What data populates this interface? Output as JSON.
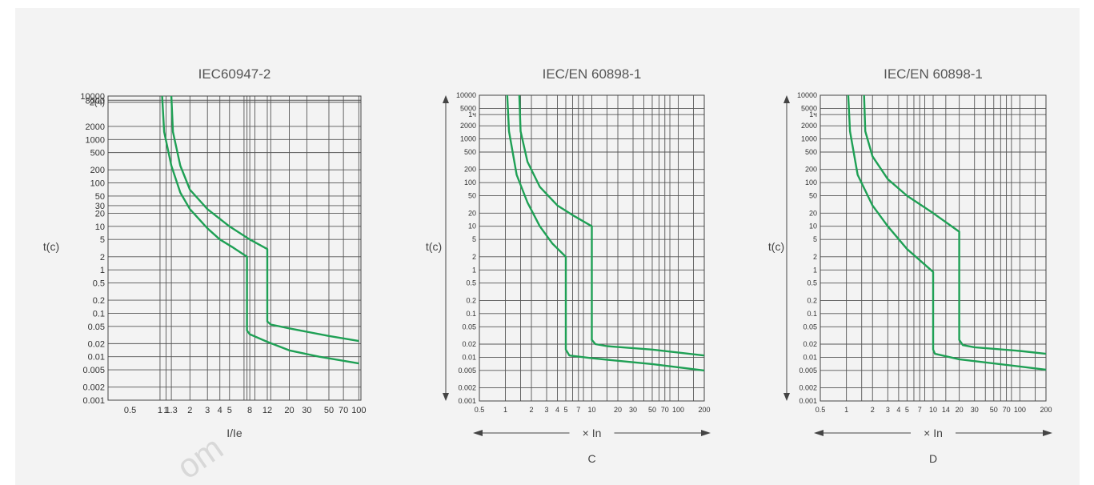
{
  "chart_data": [
    {
      "type": "line",
      "title": "IEC60947-2",
      "ylabel": "t(c)",
      "xlabel": "I/Ie",
      "xscale": "log",
      "yscale": "log",
      "xlim": [
        0.3,
        105
      ],
      "ylim": [
        0.001,
        10000
      ],
      "grid": true,
      "x_ticks": [
        {
          "v": 0.5,
          "label": "0.5"
        },
        {
          "v": 1,
          "label": "1"
        },
        {
          "v": 1.15,
          "label": "1"
        },
        {
          "v": 1.3,
          "label": "1.3"
        },
        {
          "v": 2,
          "label": "2"
        },
        {
          "v": 3,
          "label": "3"
        },
        {
          "v": 4,
          "label": "4"
        },
        {
          "v": 5,
          "label": "5"
        },
        {
          "v": 8,
          "label": "8"
        },
        {
          "v": 12,
          "label": "12"
        },
        {
          "v": 20,
          "label": "20"
        },
        {
          "v": 30,
          "label": "30"
        },
        {
          "v": 50,
          "label": "50"
        },
        {
          "v": 70,
          "label": "70"
        },
        {
          "v": 100,
          "label": "100"
        }
      ],
      "x_grid": [
        1,
        1.15,
        1.3,
        2,
        3,
        4,
        5,
        7,
        7.5,
        8,
        9,
        12,
        13,
        20,
        30,
        50,
        70,
        100
      ],
      "y_ticks": [
        {
          "v": 10000,
          "label": "10000"
        },
        {
          "v": 8000,
          "label": "8000"
        },
        {
          "v": 7200,
          "label": "2(ч)"
        },
        {
          "v": 2000,
          "label": "2000"
        },
        {
          "v": 1000,
          "label": "1000"
        },
        {
          "v": 500,
          "label": "500"
        },
        {
          "v": 200,
          "label": "200"
        },
        {
          "v": 100,
          "label": "100"
        },
        {
          "v": 50,
          "label": "50"
        },
        {
          "v": 30,
          "label": "30"
        },
        {
          "v": 20,
          "label": "20"
        },
        {
          "v": 10,
          "label": "10"
        },
        {
          "v": 5,
          "label": "5"
        },
        {
          "v": 2,
          "label": "2"
        },
        {
          "v": 1,
          "label": "1"
        },
        {
          "v": 0.5,
          "label": "0.5"
        },
        {
          "v": 0.2,
          "label": "0.2"
        },
        {
          "v": 0.1,
          "label": "0.1"
        },
        {
          "v": 0.05,
          "label": "0.05"
        },
        {
          "v": 0.02,
          "label": "0.02"
        },
        {
          "v": 0.01,
          "label": "0.01"
        },
        {
          "v": 0.005,
          "label": "0.005"
        },
        {
          "v": 0.002,
          "label": "0.002"
        },
        {
          "v": 0.001,
          "label": "0.001"
        }
      ],
      "series": [
        {
          "points": [
            [
              1.05,
              10000
            ],
            [
              1.1,
              1500
            ],
            [
              1.3,
              250
            ],
            [
              1.6,
              60
            ],
            [
              2,
              25
            ],
            [
              3,
              9
            ],
            [
              4,
              5
            ],
            [
              5.5,
              3.2
            ],
            [
              7.5,
              2
            ],
            [
              7.5,
              0.04
            ],
            [
              8,
              0.033
            ],
            [
              12,
              0.022
            ],
            [
              20,
              0.014
            ],
            [
              40,
              0.01
            ],
            [
              100,
              0.007
            ]
          ]
        },
        {
          "points": [
            [
              1.3,
              10000
            ],
            [
              1.35,
              1500
            ],
            [
              1.6,
              250
            ],
            [
              2,
              70
            ],
            [
              3,
              25
            ],
            [
              5,
              10
            ],
            [
              8,
              5
            ],
            [
              12,
              3
            ],
            [
              12,
              0.065
            ],
            [
              13,
              0.055
            ],
            [
              20,
              0.045
            ],
            [
              50,
              0.03
            ],
            [
              100,
              0.023
            ]
          ]
        }
      ]
    },
    {
      "type": "line",
      "title": "IEC/EN 60898-1",
      "ylabel": "t(c)",
      "xlabel": "× In",
      "sublabel": "C",
      "xscale": "log",
      "yscale": "log",
      "xlim": [
        0.5,
        200
      ],
      "ylim": [
        0.001,
        10000
      ],
      "grid": true,
      "x_ticks": [
        {
          "v": 0.5,
          "label": "0.5"
        },
        {
          "v": 1,
          "label": "1"
        },
        {
          "v": 2,
          "label": "2"
        },
        {
          "v": 3,
          "label": "3"
        },
        {
          "v": 4,
          "label": "4"
        },
        {
          "v": 5,
          "label": "5"
        },
        {
          "v": 7,
          "label": "7"
        },
        {
          "v": 10,
          "label": "10"
        },
        {
          "v": 20,
          "label": "20"
        },
        {
          "v": 30,
          "label": "30"
        },
        {
          "v": 50,
          "label": "50"
        },
        {
          "v": 70,
          "label": "70"
        },
        {
          "v": 100,
          "label": "100"
        },
        {
          "v": 200,
          "label": "200"
        }
      ],
      "x_grid": [
        1,
        1.5,
        2,
        3,
        4,
        5,
        6,
        7,
        8,
        10,
        15,
        20,
        30,
        40,
        50,
        60,
        70,
        80,
        100,
        150
      ],
      "y_ticks": [
        {
          "v": 10000,
          "label": "10000"
        },
        {
          "v": 5000,
          "label": "5000"
        },
        {
          "v": 3600,
          "label": "1ч"
        },
        {
          "v": 2000,
          "label": "2000"
        },
        {
          "v": 1000,
          "label": "1000"
        },
        {
          "v": 500,
          "label": "500"
        },
        {
          "v": 200,
          "label": "200"
        },
        {
          "v": 100,
          "label": "100"
        },
        {
          "v": 50,
          "label": "50"
        },
        {
          "v": 20,
          "label": "20"
        },
        {
          "v": 10,
          "label": "10"
        },
        {
          "v": 5,
          "label": "5"
        },
        {
          "v": 2,
          "label": "2"
        },
        {
          "v": 1,
          "label": "1"
        },
        {
          "v": 0.5,
          "label": "0.5"
        },
        {
          "v": 0.2,
          "label": "0.2"
        },
        {
          "v": 0.1,
          "label": "0.1"
        },
        {
          "v": 0.05,
          "label": "0.05"
        },
        {
          "v": 0.02,
          "label": "0.02"
        },
        {
          "v": 0.01,
          "label": "0.01"
        },
        {
          "v": 0.005,
          "label": "0.005"
        },
        {
          "v": 0.002,
          "label": "0.002"
        },
        {
          "v": 0.001,
          "label": "0.001"
        }
      ],
      "series": [
        {
          "points": [
            [
              1.05,
              10000
            ],
            [
              1.1,
              1500
            ],
            [
              1.35,
              150
            ],
            [
              1.8,
              35
            ],
            [
              2.5,
              10
            ],
            [
              3.5,
              4
            ],
            [
              5,
              2
            ],
            [
              5,
              0.015
            ],
            [
              5.5,
              0.011
            ],
            [
              10,
              0.0095
            ],
            [
              50,
              0.007
            ],
            [
              200,
              0.005
            ]
          ]
        },
        {
          "points": [
            [
              1.45,
              10000
            ],
            [
              1.5,
              1500
            ],
            [
              1.8,
              300
            ],
            [
              2.5,
              80
            ],
            [
              4,
              30
            ],
            [
              6,
              18
            ],
            [
              10,
              10
            ],
            [
              10,
              0.025
            ],
            [
              11,
              0.02
            ],
            [
              15,
              0.018
            ],
            [
              50,
              0.015
            ],
            [
              200,
              0.011
            ]
          ]
        }
      ]
    },
    {
      "type": "line",
      "title": "IEC/EN 60898-1",
      "ylabel": "t(c)",
      "xlabel": "× In",
      "sublabel": "D",
      "xscale": "log",
      "yscale": "log",
      "xlim": [
        0.5,
        200
      ],
      "ylim": [
        0.001,
        10000
      ],
      "grid": true,
      "x_ticks": [
        {
          "v": 0.5,
          "label": "0.5"
        },
        {
          "v": 1,
          "label": "1"
        },
        {
          "v": 2,
          "label": "2"
        },
        {
          "v": 3,
          "label": "3"
        },
        {
          "v": 4,
          "label": "4"
        },
        {
          "v": 5,
          "label": "5"
        },
        {
          "v": 7,
          "label": "7"
        },
        {
          "v": 10,
          "label": "10"
        },
        {
          "v": 14,
          "label": "14"
        },
        {
          "v": 20,
          "label": "20"
        },
        {
          "v": 30,
          "label": "30"
        },
        {
          "v": 50,
          "label": "50"
        },
        {
          "v": 70,
          "label": "70"
        },
        {
          "v": 100,
          "label": "100"
        },
        {
          "v": 200,
          "label": "200"
        }
      ],
      "x_grid": [
        1,
        1.5,
        2,
        3,
        4,
        5,
        6,
        7,
        8,
        10,
        14,
        20,
        30,
        40,
        50,
        60,
        70,
        80,
        100,
        150
      ],
      "y_ticks": [
        {
          "v": 10000,
          "label": "10000"
        },
        {
          "v": 5000,
          "label": "5000"
        },
        {
          "v": 3600,
          "label": "1ч"
        },
        {
          "v": 2000,
          "label": "2000"
        },
        {
          "v": 1000,
          "label": "1000"
        },
        {
          "v": 500,
          "label": "500"
        },
        {
          "v": 200,
          "label": "200"
        },
        {
          "v": 100,
          "label": "100"
        },
        {
          "v": 50,
          "label": "50"
        },
        {
          "v": 20,
          "label": "20"
        },
        {
          "v": 10,
          "label": "10"
        },
        {
          "v": 5,
          "label": "5"
        },
        {
          "v": 2,
          "label": "2"
        },
        {
          "v": 1,
          "label": "1"
        },
        {
          "v": 0.5,
          "label": "0.5"
        },
        {
          "v": 0.2,
          "label": "0.2"
        },
        {
          "v": 0.1,
          "label": "0.1"
        },
        {
          "v": 0.05,
          "label": "0.05"
        },
        {
          "v": 0.02,
          "label": "0.02"
        },
        {
          "v": 0.01,
          "label": "0.01"
        },
        {
          "v": 0.005,
          "label": "0.005"
        },
        {
          "v": 0.002,
          "label": "0.002"
        },
        {
          "v": 0.001,
          "label": "0.001"
        }
      ],
      "series": [
        {
          "points": [
            [
              1.05,
              10000
            ],
            [
              1.1,
              1500
            ],
            [
              1.35,
              150
            ],
            [
              2,
              30
            ],
            [
              3,
              10
            ],
            [
              5,
              3
            ],
            [
              10,
              0.9
            ],
            [
              10,
              0.015
            ],
            [
              10.5,
              0.012
            ],
            [
              20,
              0.009
            ],
            [
              200,
              0.0052
            ]
          ]
        },
        {
          "points": [
            [
              1.6,
              10000
            ],
            [
              1.65,
              1500
            ],
            [
              2,
              400
            ],
            [
              3,
              120
            ],
            [
              5,
              50
            ],
            [
              10,
              20
            ],
            [
              20,
              7.5
            ],
            [
              20,
              0.025
            ],
            [
              22,
              0.019
            ],
            [
              30,
              0.017
            ],
            [
              100,
              0.014
            ],
            [
              200,
              0.012
            ]
          ]
        }
      ]
    }
  ],
  "watermark": "om"
}
